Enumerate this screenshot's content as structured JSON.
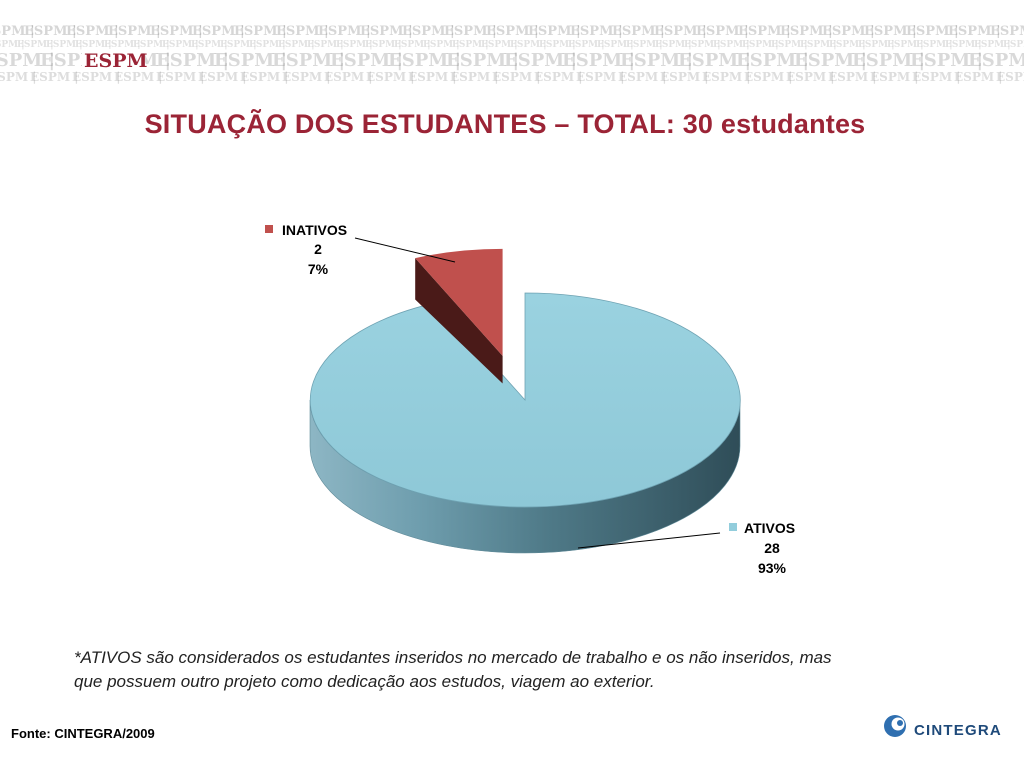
{
  "header": {
    "watermark_word": "ESPM",
    "brand": "ESPM",
    "brand_color": "#9b2436"
  },
  "title": "SITUAÇÃO DOS ESTUDANTES – TOTAL: 30 estudantes",
  "chart_data": {
    "type": "pie",
    "title": "SITUAÇÃO DOS ESTUDANTES – TOTAL: 30 estudantes",
    "slices": [
      {
        "label": "INATIVOS",
        "value": 2,
        "percent": "7%",
        "color": "#c0504d"
      },
      {
        "label": "ATIVOS",
        "value": 28,
        "percent": "93%",
        "color": "#92cddc"
      }
    ],
    "exploded": "INATIVOS",
    "three_d": true
  },
  "footnote": {
    "line1": "*ATIVOS são considerados os estudantes inseridos no mercado de trabalho e os não inseridos, mas",
    "line2": "que possuem outro projeto como dedicação aos estudos, viagem ao exterior."
  },
  "source": "Fonte: CINTEGRA/2009",
  "logo": {
    "name": "CINTEGRA",
    "icon": "cintegra-swirl-icon",
    "color": "#1f4a7a"
  }
}
